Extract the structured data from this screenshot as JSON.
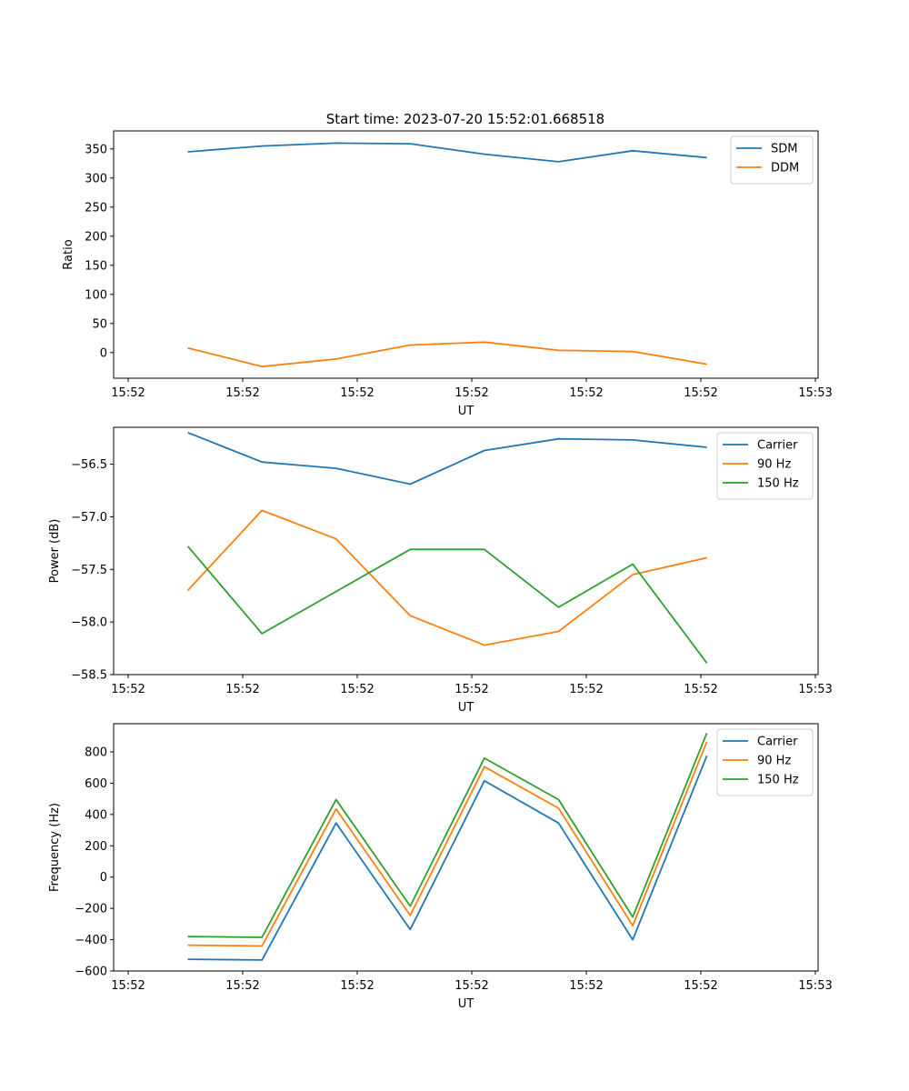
{
  "title": "Start time: 2023-07-20 15:52:01.668518",
  "chart_data": [
    {
      "type": "line",
      "xlabel": "UT",
      "ylabel": "Ratio",
      "x_ticks": [
        "15:52",
        "15:52",
        "15:52",
        "15:52",
        "15:52",
        "15:52",
        "15:53"
      ],
      "y_ticks": [
        0,
        50,
        100,
        150,
        200,
        250,
        300,
        350
      ],
      "ylim": [
        -44,
        381
      ],
      "xlim": [
        -1.0,
        8.5
      ],
      "x": [
        0,
        1,
        2,
        3,
        4,
        5,
        6,
        7
      ],
      "legend": "top-right",
      "series": [
        {
          "name": "SDM",
          "color": "#1f77b4",
          "values": [
            345,
            355,
            360,
            359,
            341,
            328,
            347,
            335
          ]
        },
        {
          "name": "DDM",
          "color": "#ff7f0e",
          "values": [
            8,
            -24,
            -11,
            13,
            18,
            4,
            2,
            -20
          ]
        }
      ]
    },
    {
      "type": "line",
      "xlabel": "UT",
      "ylabel": "Power (dB)",
      "x_ticks": [
        "15:52",
        "15:52",
        "15:52",
        "15:52",
        "15:52",
        "15:52",
        "15:53"
      ],
      "y_ticks": [
        -58.5,
        -58.0,
        -57.5,
        -57.0,
        -56.5
      ],
      "y_tick_labels": [
        "−58.5",
        "−58.0",
        "−57.5",
        "−57.0",
        "−56.5"
      ],
      "ylim": [
        -58.5,
        -56.15
      ],
      "xlim": [
        -1.0,
        8.5
      ],
      "x": [
        0,
        1,
        2,
        3,
        4,
        5,
        6,
        7
      ],
      "legend": "top-right",
      "series": [
        {
          "name": "Carrier",
          "color": "#1f77b4",
          "values": [
            -56.2,
            -56.48,
            -56.54,
            -56.69,
            -56.37,
            -56.26,
            -56.27,
            -56.34
          ]
        },
        {
          "name": "90 Hz",
          "color": "#ff7f0e",
          "values": [
            -57.7,
            -56.94,
            -57.21,
            -57.94,
            -58.22,
            -58.09,
            -57.55,
            -57.39
          ]
        },
        {
          "name": "150 Hz",
          "color": "#2ca02c",
          "values": [
            -57.28,
            -58.11,
            -57.71,
            -57.31,
            -57.31,
            -57.86,
            -57.45,
            -58.39
          ]
        }
      ]
    },
    {
      "type": "line",
      "xlabel": "UT",
      "ylabel": "Frequency (Hz)",
      "x_ticks": [
        "15:52",
        "15:52",
        "15:52",
        "15:52",
        "15:52",
        "15:52",
        "15:53"
      ],
      "y_ticks": [
        -600,
        -400,
        -200,
        0,
        200,
        400,
        600,
        800
      ],
      "y_tick_labels": [
        "−600",
        "−400",
        "−200",
        "0",
        "200",
        "400",
        "600",
        "800"
      ],
      "ylim": [
        -600,
        980
      ],
      "xlim": [
        -1.0,
        8.5
      ],
      "x": [
        0,
        1,
        2,
        3,
        4,
        5,
        6,
        7
      ],
      "legend": "top-right",
      "series": [
        {
          "name": "Carrier",
          "color": "#1f77b4",
          "values": [
            -525,
            -530,
            345,
            -335,
            615,
            345,
            -400,
            775
          ]
        },
        {
          "name": "90 Hz",
          "color": "#ff7f0e",
          "values": [
            -435,
            -440,
            435,
            -245,
            705,
            440,
            -310,
            865
          ]
        },
        {
          "name": "150 Hz",
          "color": "#2ca02c",
          "values": [
            -380,
            -385,
            495,
            -185,
            760,
            495,
            -255,
            920
          ]
        }
      ]
    }
  ]
}
